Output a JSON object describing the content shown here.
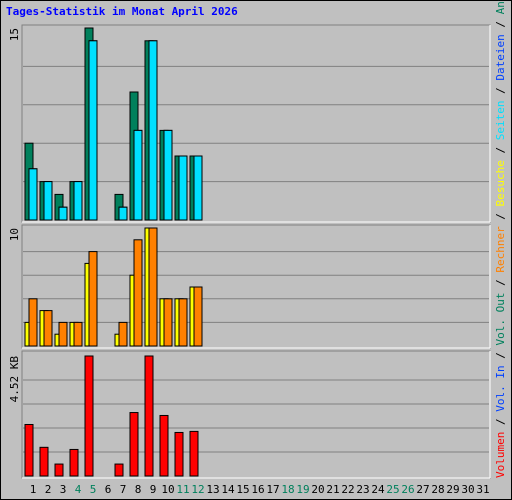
{
  "chart_data": {
    "type": "bar",
    "title": "Tages-Statistik im Monat April 2026",
    "categories": [
      "1",
      "2",
      "3",
      "4",
      "5",
      "6",
      "7",
      "8",
      "9",
      "10",
      "11",
      "12",
      "13",
      "14",
      "15",
      "16",
      "17",
      "18",
      "19",
      "20",
      "21",
      "22",
      "23",
      "24",
      "25",
      "26",
      "27",
      "28",
      "29",
      "30",
      "31"
    ],
    "category_colors": [
      "#000000",
      "#000000",
      "#000000",
      "#00805c",
      "#00805c",
      "#000000",
      "#000000",
      "#000000",
      "#000000",
      "#000000",
      "#00805c",
      "#00805c",
      "#000000",
      "#000000",
      "#000000",
      "#000000",
      "#000000",
      "#00805c",
      "#00805c",
      "#000000",
      "#000000",
      "#000000",
      "#000000",
      "#000000",
      "#00805c",
      "#00805c",
      "#000000",
      "#000000",
      "#000000",
      "#000000",
      "#000000"
    ],
    "legend": [
      {
        "name": "Volumen",
        "color": "#ff0000"
      },
      {
        "name": "Vol. In",
        "color": "#0040ff"
      },
      {
        "name": "Vol. Out",
        "color": "#00805c"
      },
      {
        "name": "Rechner",
        "color": "#ff8000"
      },
      {
        "name": "Besuche",
        "color": "#ffff00"
      },
      {
        "name": "Seiten",
        "color": "#00e0ff"
      },
      {
        "name": "Dateien",
        "color": "#0040ff"
      },
      {
        "name": "Anfragen",
        "color": "#00805c"
      }
    ],
    "panels": [
      {
        "ylim": [
          0,
          15
        ],
        "yticks": [
          15
        ],
        "series": [
          {
            "name": "Anfragen",
            "color": "#00805c",
            "values": [
              6,
              3,
              2,
              3,
              15,
              0,
              2,
              10,
              14,
              7,
              5,
              5,
              0,
              0,
              0,
              0,
              0,
              0,
              0,
              0,
              0,
              0,
              0,
              0,
              0,
              0,
              0,
              0,
              0,
              0,
              0
            ]
          },
          {
            "name": "Dateien",
            "color": "#0040ff",
            "values": [
              4,
              3,
              1,
              3,
              14,
              0,
              1,
              7,
              14,
              7,
              5,
              5,
              0,
              0,
              0,
              0,
              0,
              0,
              0,
              0,
              0,
              0,
              0,
              0,
              0,
              0,
              0,
              0,
              0,
              0,
              0
            ]
          },
          {
            "name": "Seiten",
            "color": "#00e0ff",
            "values": [
              4,
              3,
              1,
              3,
              14,
              0,
              1,
              7,
              14,
              7,
              5,
              5,
              0,
              0,
              0,
              0,
              0,
              0,
              0,
              0,
              0,
              0,
              0,
              0,
              0,
              0,
              0,
              0,
              0,
              0,
              0
            ]
          }
        ]
      },
      {
        "ylim": [
          0,
          10
        ],
        "yticks": [
          10
        ],
        "series": [
          {
            "name": "Besuche",
            "color": "#ffff00",
            "values": [
              2,
              3,
              1,
              2,
              7,
              0,
              1,
              6,
              10,
              4,
              4,
              5,
              0,
              0,
              0,
              0,
              0,
              0,
              0,
              0,
              0,
              0,
              0,
              0,
              0,
              0,
              0,
              0,
              0,
              0,
              0
            ]
          },
          {
            "name": "Rechner",
            "color": "#ff8000",
            "values": [
              4,
              3,
              2,
              2,
              8,
              0,
              2,
              9,
              10,
              4,
              4,
              5,
              0,
              0,
              0,
              0,
              0,
              0,
              0,
              0,
              0,
              0,
              0,
              0,
              0,
              0,
              0,
              0,
              0,
              0,
              0
            ]
          }
        ]
      },
      {
        "ylim": [
          0,
          4.52
        ],
        "yticks": [
          {
            "value": 4.52,
            "label": "4.52 KB"
          }
        ],
        "series": [
          {
            "name": "Volumen",
            "color": "#ff0000",
            "values": [
              1.94,
              1.08,
              0.45,
              1.0,
              4.52,
              0,
              0.45,
              2.39,
              4.52,
              2.28,
              1.64,
              1.68,
              0,
              0,
              0,
              0,
              0,
              0,
              0,
              0,
              0,
              0,
              0,
              0,
              0,
              0,
              0,
              0,
              0,
              0,
              0
            ]
          }
        ]
      }
    ]
  }
}
